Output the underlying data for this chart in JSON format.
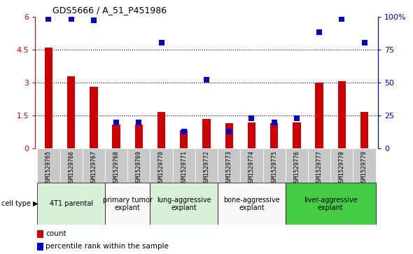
{
  "title": "GDS5666 / A_51_P451986",
  "samples": [
    "GSM1529765",
    "GSM1529766",
    "GSM1529767",
    "GSM1529768",
    "GSM1529769",
    "GSM1529770",
    "GSM1529771",
    "GSM1529772",
    "GSM1529773",
    "GSM1529774",
    "GSM1529775",
    "GSM1529776",
    "GSM1529777",
    "GSM1529778",
    "GSM1529779"
  ],
  "count_values": [
    4.6,
    3.3,
    2.8,
    1.1,
    1.1,
    1.65,
    0.85,
    1.35,
    1.15,
    1.2,
    1.15,
    1.2,
    3.0,
    3.05,
    1.65
  ],
  "percentile_values": [
    98,
    98,
    97,
    20,
    20,
    80,
    13,
    52,
    13,
    23,
    20,
    23,
    88,
    98,
    80
  ],
  "ylim_left": [
    0,
    6
  ],
  "ylim_right": [
    0,
    100
  ],
  "yticks_left": [
    0,
    1.5,
    3.0,
    4.5,
    6.0
  ],
  "yticks_right": [
    0,
    25,
    50,
    75,
    100
  ],
  "ytick_labels_right": [
    "0",
    "25",
    "50",
    "75",
    "100%"
  ],
  "cell_groups": [
    {
      "label": "4T1 parental",
      "start": 0,
      "end": 3,
      "color": "#d8f0d8"
    },
    {
      "label": "primary tumor\nexplant",
      "start": 3,
      "end": 5,
      "color": "#f8f8f8"
    },
    {
      "label": "lung-aggressive\nexplant",
      "start": 5,
      "end": 8,
      "color": "#d8f0d8"
    },
    {
      "label": "bone-aggressive\nexplant",
      "start": 8,
      "end": 11,
      "color": "#f8f8f8"
    },
    {
      "label": "liver-aggressive\nexplant",
      "start": 11,
      "end": 15,
      "color": "#44cc44"
    }
  ],
  "bar_color": "#cc0000",
  "dot_color": "#0000cc",
  "bar_width": 0.35,
  "dot_size": 30,
  "legend_count_label": "count",
  "legend_percentile_label": "percentile rank within the sample",
  "right_axis_color": "#0000cc",
  "left_axis_color": "#cc0000",
  "cell_type_label": "cell type",
  "sample_bg_color": "#c8c8c8"
}
